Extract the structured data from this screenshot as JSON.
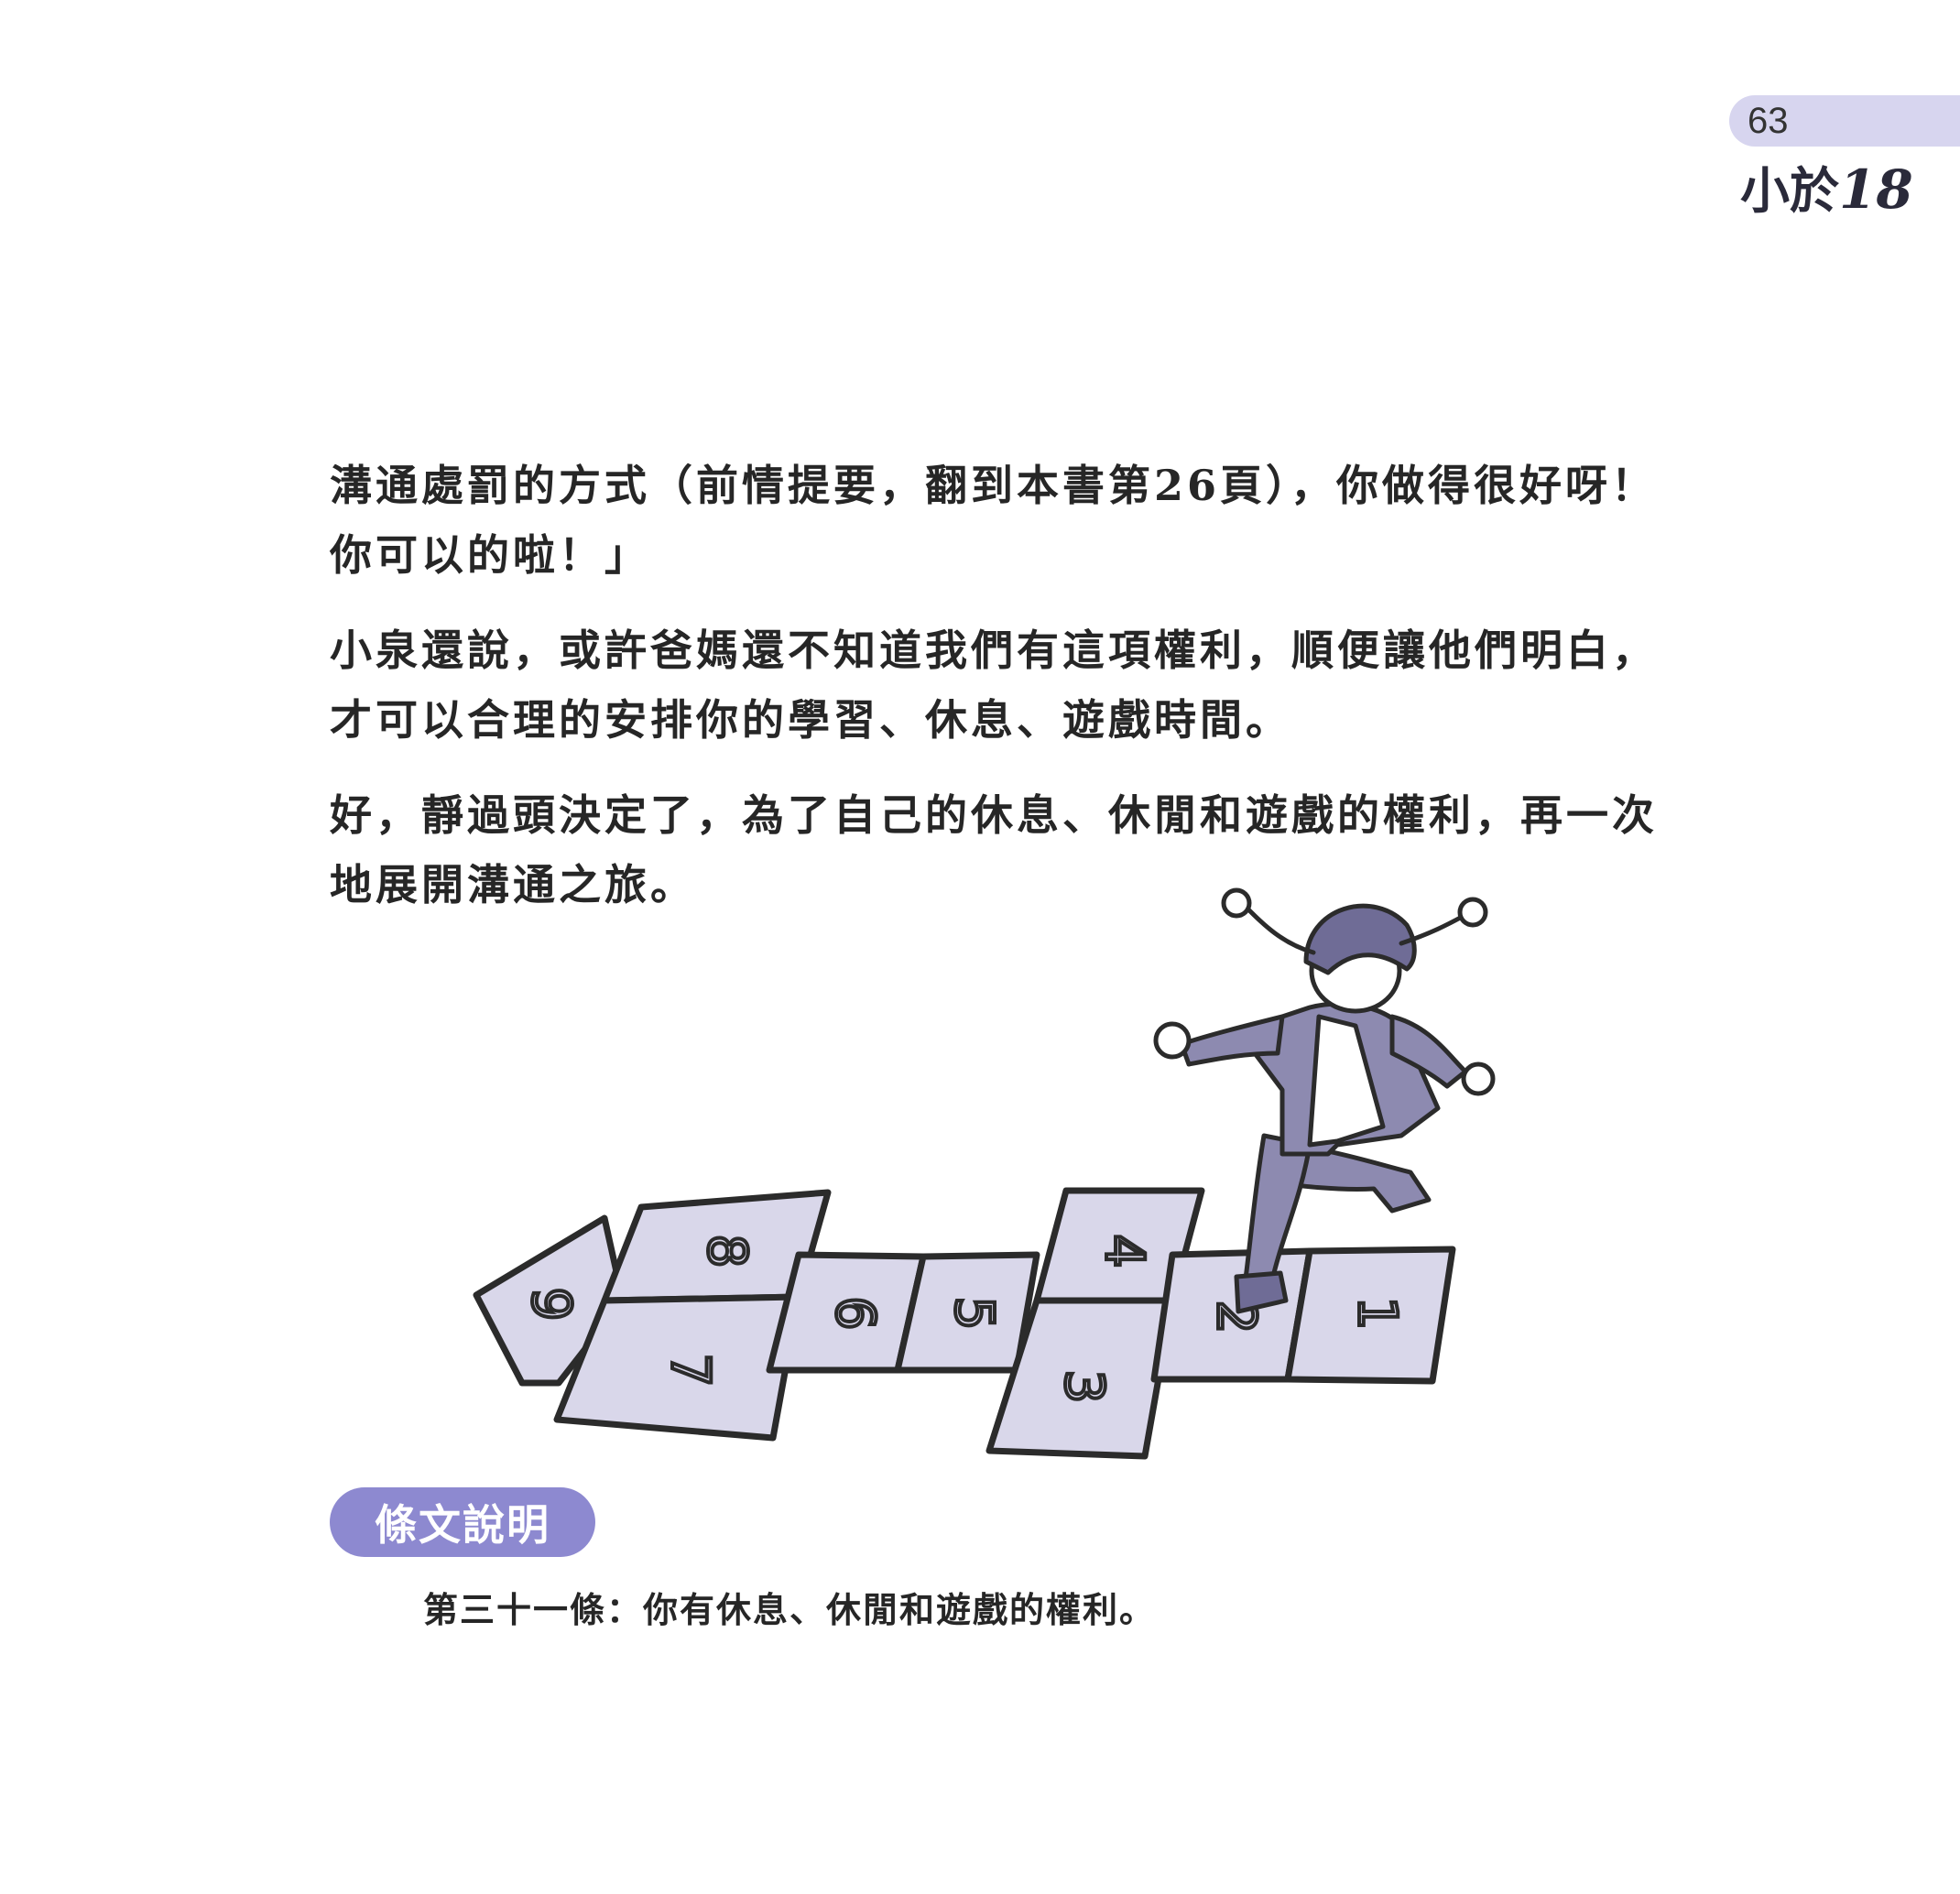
{
  "header": {
    "page_number": "63",
    "title_text": "小於",
    "title_number": "18"
  },
  "paragraphs": [
    "溝通處罰的方式（前情提要，翻到本書第26頁），你做得很好呀！你可以的啦！」",
    "小泉還說，或許爸媽還不知道我們有這項權利，順便讓他們明白，才可以合理的安排你的學習、休息、遊戲時間。",
    "好，靜過頭決定了，為了自己的休息、休閒和遊戲的權利，再一次地展開溝通之旅。"
  ],
  "illustration": {
    "hopscotch_numbers": [
      "1",
      "2",
      "3",
      "4",
      "5",
      "6",
      "7",
      "8",
      "9"
    ]
  },
  "section": {
    "label": "條文說明",
    "article": "第三十一條：你有休息、休閒和遊戲的權利。"
  },
  "colors": {
    "accent": "#8d89d0",
    "tab": "#d7d5ef",
    "illustration_fill": "#d9d7ea",
    "illustration_dark": "#6f6c96"
  }
}
